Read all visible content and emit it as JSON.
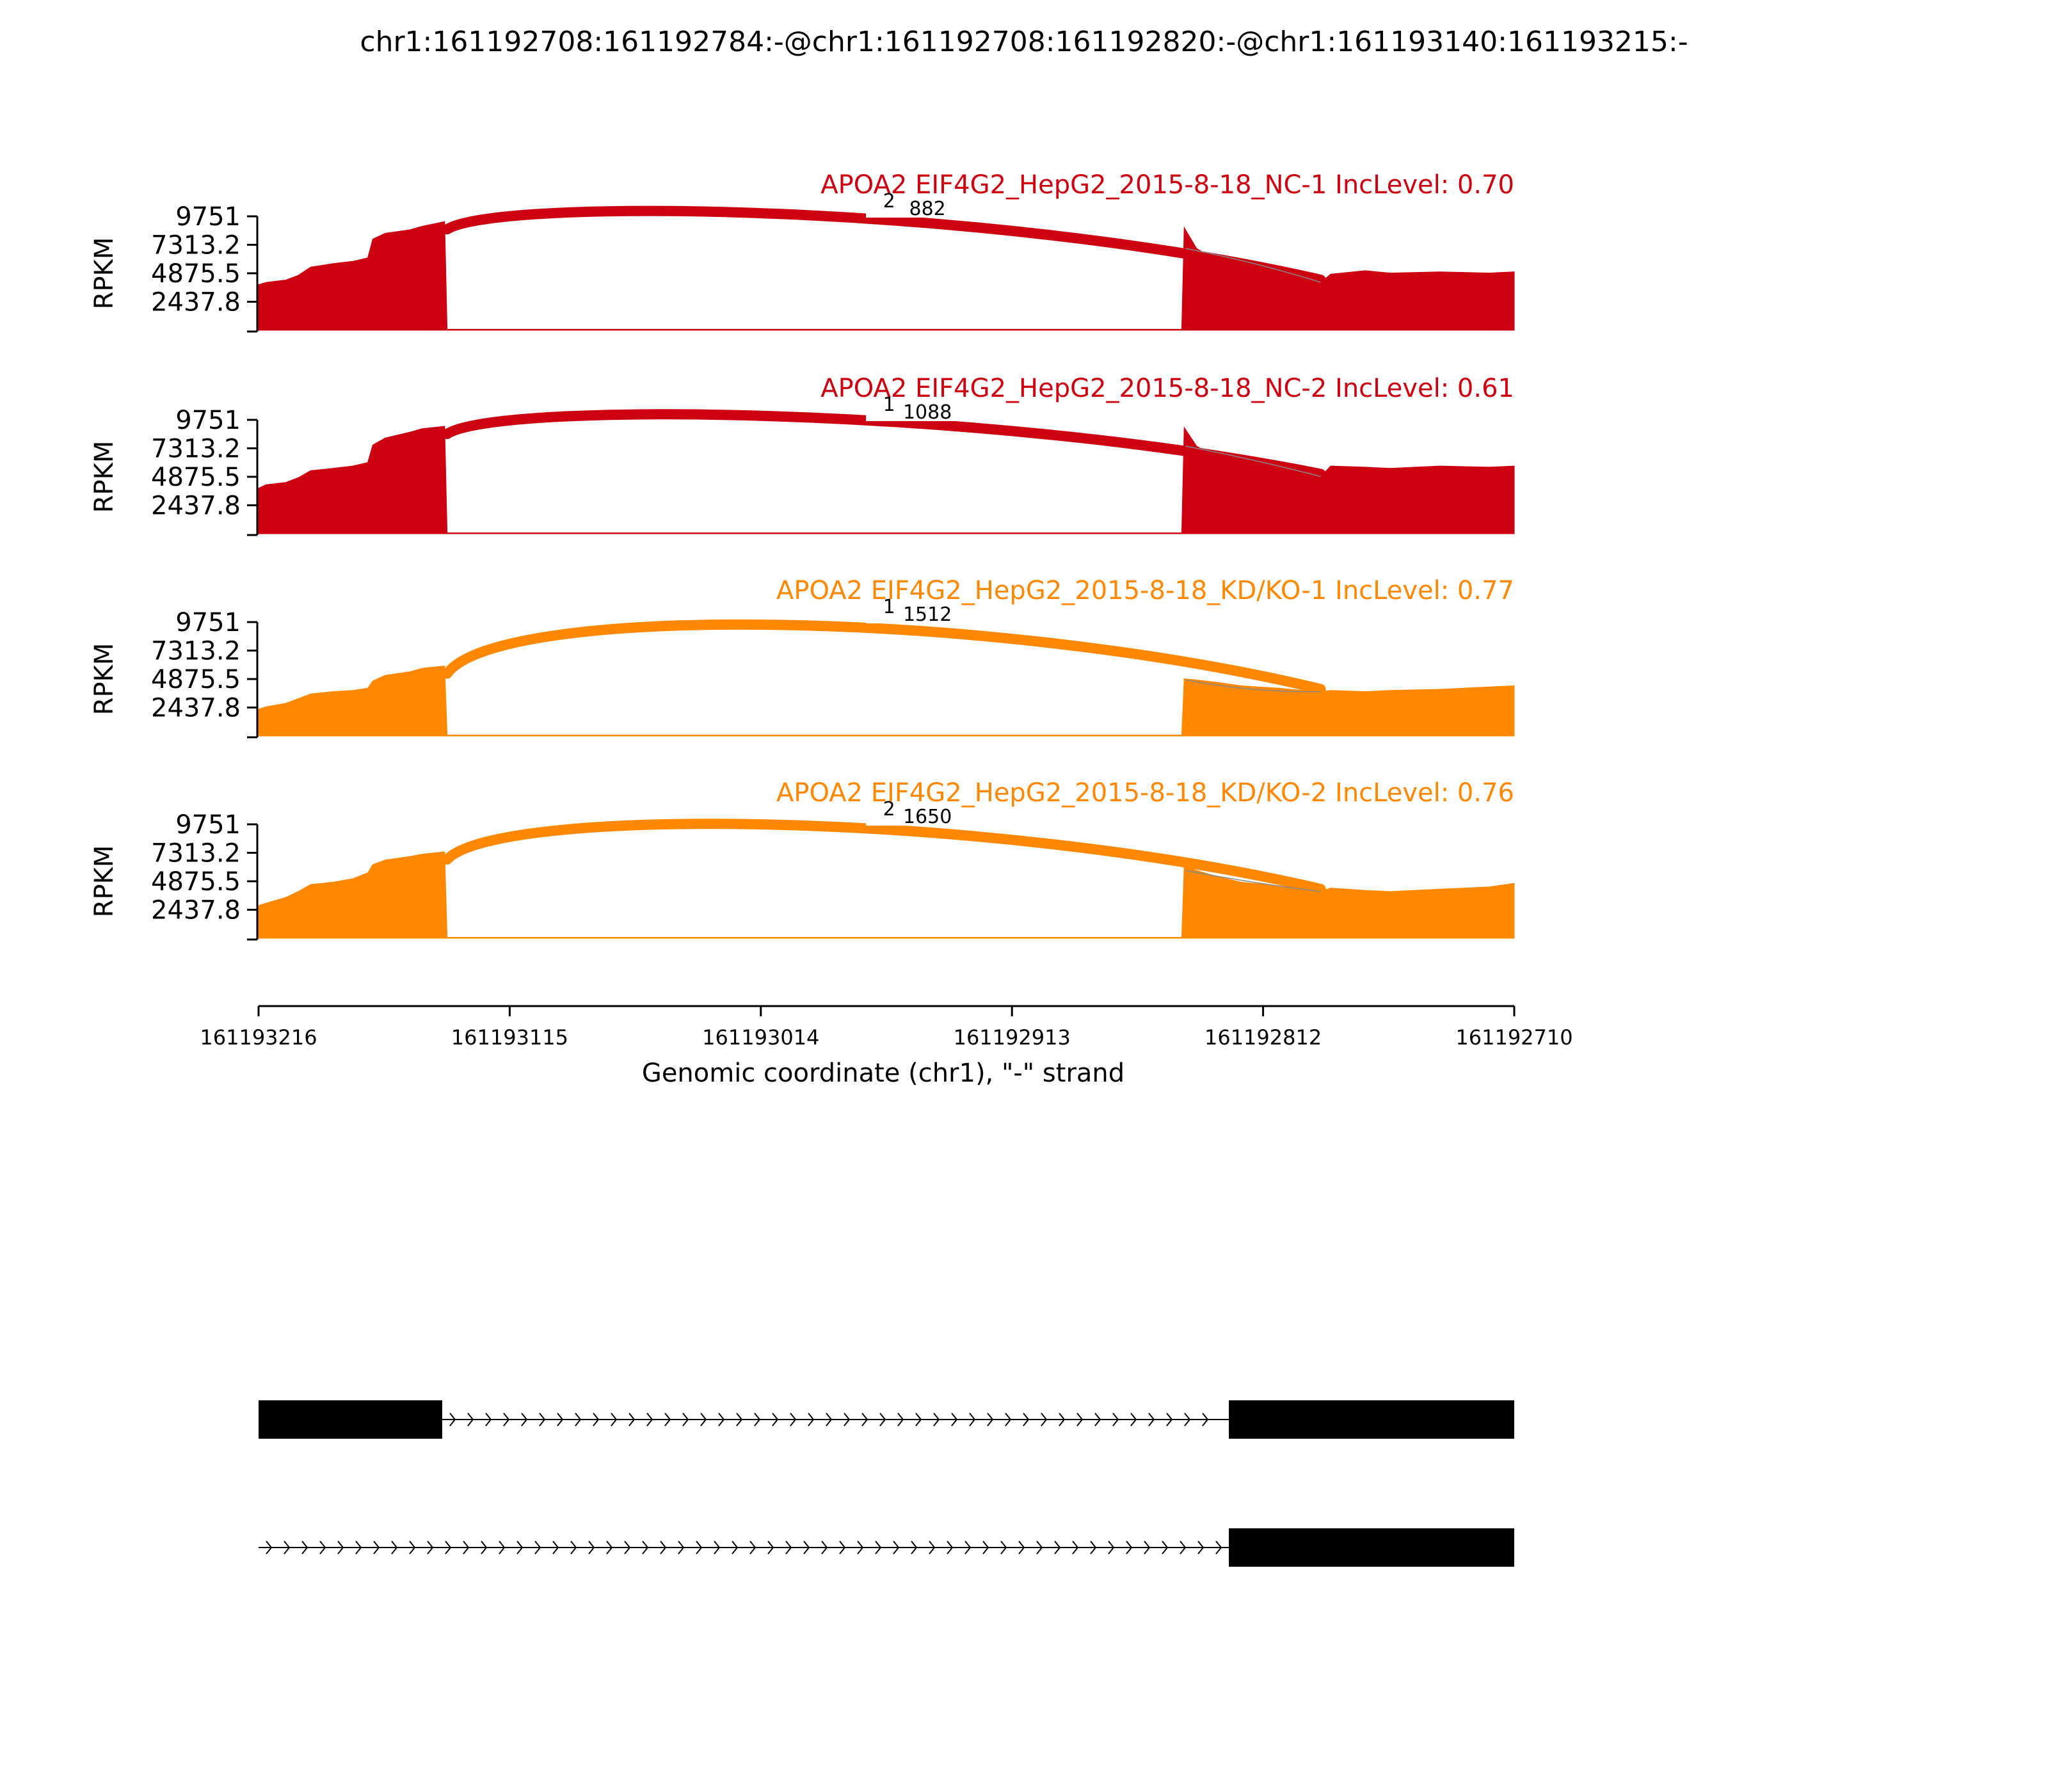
{
  "chart_data": {
    "type": "area",
    "title": "chr1:161192708:161192784:-@chr1:161192708:161192820:-@chr1:161193140:161193215:-",
    "ylabel": "RPKM",
    "xlabel": "Genomic coordinate (chr1), \"-\" strand",
    "ylim": [
      0,
      9751
    ],
    "y_ticks": [
      "9751",
      "7313.2",
      "4875.5",
      "2437.8"
    ],
    "x_range": [
      161193216,
      161192710
    ],
    "x_ticks": [
      "161193216",
      "161193115",
      "161193014",
      "161192913",
      "161192812",
      "161192710"
    ],
    "exon1_end": 161193140,
    "exon2_start": 161192844,
    "junction_end": 161192788,
    "series": [
      {
        "name": "APOA2 EIF4G2_HepG2_2015-8-18_NC-1 IncLevel: 0.70",
        "color": "#cc0011",
        "junction_count_small": "2",
        "junction_count_large": "882",
        "profile": [
          [
            161193216,
            3900
          ],
          [
            161193213,
            4100
          ],
          [
            161193205,
            4300
          ],
          [
            161193200,
            4700
          ],
          [
            161193195,
            5400
          ],
          [
            161193186,
            5700
          ],
          [
            161193178,
            5900
          ],
          [
            161193172,
            6200
          ],
          [
            161193170,
            7800
          ],
          [
            161193165,
            8300
          ],
          [
            161193155,
            8600
          ],
          [
            161193150,
            8900
          ],
          [
            161193141,
            9300
          ],
          [
            161193140,
            0
          ],
          [
            161192844,
            0
          ],
          [
            161192843,
            8800
          ],
          [
            161192838,
            7000
          ],
          [
            161192830,
            6000
          ],
          [
            161192820,
            5600
          ],
          [
            161192805,
            5300
          ],
          [
            161192795,
            4600
          ],
          [
            161192788,
            4100
          ],
          [
            161192784,
            4800
          ],
          [
            161192770,
            5100
          ],
          [
            161192760,
            4900
          ],
          [
            161192740,
            5000
          ],
          [
            161192720,
            4900
          ],
          [
            161192710,
            5000
          ]
        ]
      },
      {
        "name": "APOA2 EIF4G2_HepG2_2015-8-18_NC-2 IncLevel: 0.61",
        "color": "#cc0011",
        "junction_count_small": "1",
        "junction_count_large": "1088",
        "profile": [
          [
            161193216,
            3900
          ],
          [
            161193213,
            4200
          ],
          [
            161193205,
            4400
          ],
          [
            161193200,
            4800
          ],
          [
            161193195,
            5400
          ],
          [
            161193186,
            5600
          ],
          [
            161193178,
            5800
          ],
          [
            161193172,
            6100
          ],
          [
            161193170,
            7600
          ],
          [
            161193165,
            8200
          ],
          [
            161193155,
            8700
          ],
          [
            161193150,
            9000
          ],
          [
            161193141,
            9200
          ],
          [
            161193140,
            0
          ],
          [
            161192844,
            0
          ],
          [
            161192843,
            9100
          ],
          [
            161192838,
            7500
          ],
          [
            161192830,
            6500
          ],
          [
            161192820,
            6000
          ],
          [
            161192805,
            5400
          ],
          [
            161192795,
            5000
          ],
          [
            161192788,
            4900
          ],
          [
            161192784,
            5800
          ],
          [
            161192770,
            5700
          ],
          [
            161192760,
            5600
          ],
          [
            161192740,
            5800
          ],
          [
            161192720,
            5700
          ],
          [
            161192710,
            5800
          ]
        ]
      },
      {
        "name": "APOA2 EIF4G2_HepG2_2015-8-18_KD/KO-1 IncLevel: 0.77",
        "color": "#ff8800",
        "junction_count_small": "1",
        "junction_count_large": "1512",
        "profile": [
          [
            161193216,
            2300
          ],
          [
            161193213,
            2500
          ],
          [
            161193205,
            2800
          ],
          [
            161193200,
            3200
          ],
          [
            161193195,
            3600
          ],
          [
            161193186,
            3800
          ],
          [
            161193178,
            3900
          ],
          [
            161193172,
            4100
          ],
          [
            161193170,
            4700
          ],
          [
            161193165,
            5200
          ],
          [
            161193155,
            5500
          ],
          [
            161193150,
            5800
          ],
          [
            161193141,
            6000
          ],
          [
            161193140,
            0
          ],
          [
            161192844,
            0
          ],
          [
            161192843,
            4900
          ],
          [
            161192838,
            4800
          ],
          [
            161192830,
            4600
          ],
          [
            161192820,
            4300
          ],
          [
            161192805,
            4100
          ],
          [
            161192795,
            3900
          ],
          [
            161192788,
            3800
          ],
          [
            161192784,
            3900
          ],
          [
            161192770,
            3800
          ],
          [
            161192760,
            3900
          ],
          [
            161192740,
            4000
          ],
          [
            161192720,
            4200
          ],
          [
            161192710,
            4300
          ]
        ]
      },
      {
        "name": "APOA2 EIF4G2_HepG2_2015-8-18_KD/KO-2 IncLevel: 0.76",
        "color": "#ff8800",
        "junction_count_small": "2",
        "junction_count_large": "1650",
        "profile": [
          [
            161193216,
            2800
          ],
          [
            161193213,
            3000
          ],
          [
            161193205,
            3500
          ],
          [
            161193200,
            4000
          ],
          [
            161193195,
            4600
          ],
          [
            161193186,
            4800
          ],
          [
            161193178,
            5100
          ],
          [
            161193172,
            5600
          ],
          [
            161193170,
            6300
          ],
          [
            161193165,
            6700
          ],
          [
            161193155,
            7000
          ],
          [
            161193150,
            7200
          ],
          [
            161193141,
            7400
          ],
          [
            161193140,
            0
          ],
          [
            161192844,
            0
          ],
          [
            161192843,
            6200
          ],
          [
            161192838,
            5800
          ],
          [
            161192830,
            5300
          ],
          [
            161192820,
            4800
          ],
          [
            161192805,
            4500
          ],
          [
            161192795,
            4200
          ],
          [
            161192788,
            4000
          ],
          [
            161192784,
            4300
          ],
          [
            161192770,
            4100
          ],
          [
            161192760,
            4000
          ],
          [
            161192740,
            4200
          ],
          [
            161192720,
            4400
          ],
          [
            161192710,
            4700
          ]
        ]
      }
    ],
    "transcripts": [
      {
        "exons": [
          [
            161193216,
            161193142
          ],
          [
            161192825,
            161192710
          ]
        ],
        "intron": [
          161193142,
          161192825
        ]
      },
      {
        "exons": [
          [
            161192825,
            161192710
          ]
        ],
        "intron": [
          161193216,
          161192825
        ]
      }
    ]
  }
}
